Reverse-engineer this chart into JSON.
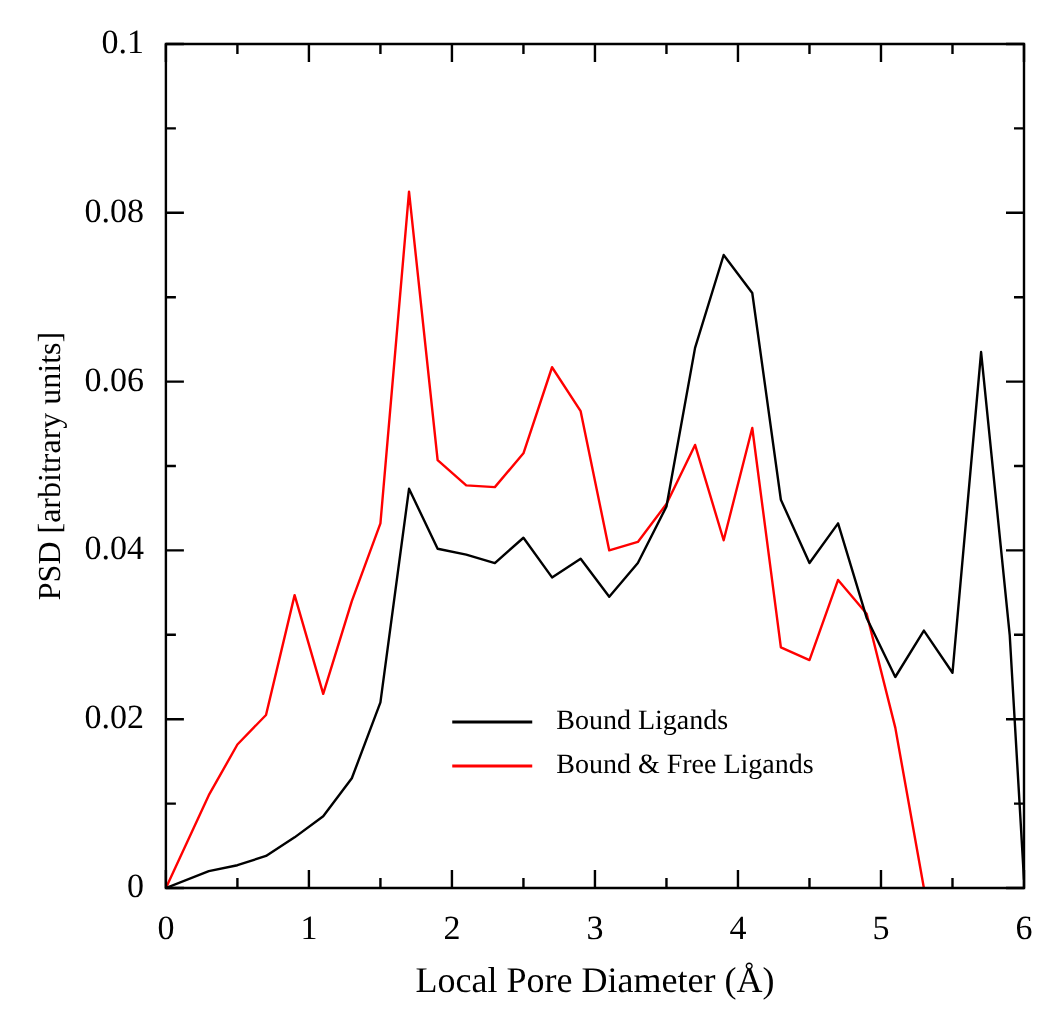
{
  "chart_data": {
    "type": "line",
    "xlabel": "Local Pore Diameter (Å)",
    "ylabel": "PSD [arbitrary units]",
    "x": [
      0,
      0.3,
      0.5,
      0.7,
      0.9,
      1.1,
      1.3,
      1.5,
      1.7,
      1.9,
      2.1,
      2.3,
      2.5,
      2.7,
      2.9,
      3.1,
      3.3,
      3.5,
      3.7,
      3.9,
      4.1,
      4.3,
      4.5,
      4.7,
      4.9,
      5.1,
      5.3,
      5.5,
      5.7,
      5.9,
      6
    ],
    "series": [
      {
        "name": "Bound Ligands",
        "color": "#000000",
        "values": [
          0,
          0.002,
          0.0027,
          0.0038,
          0.006,
          0.0085,
          0.013,
          0.022,
          0.0473,
          0.0402,
          0.0395,
          0.0385,
          0.0415,
          0.0368,
          0.039,
          0.0345,
          0.0385,
          0.0452,
          0.064,
          0.075,
          0.0705,
          0.046,
          0.0385,
          0.0432,
          0.032,
          0.025,
          0.0305,
          0.0255,
          0.0635,
          0.03,
          0.001
        ]
      },
      {
        "name": "Bound & Free Ligands",
        "color": "#ff0000",
        "values": [
          0,
          0.011,
          0.017,
          0.0205,
          0.0347,
          0.023,
          0.034,
          0.0432,
          0.0825,
          0.0507,
          0.0477,
          0.0475,
          0.0515,
          0.0617,
          0.0565,
          0.04,
          0.041,
          0.0455,
          0.0525,
          0.0412,
          0.0545,
          0.0285,
          0.027,
          0.0365,
          0.0325,
          0.019,
          0,
          null,
          null,
          null,
          null
        ]
      }
    ],
    "xlim": [
      0,
      6
    ],
    "ylim": [
      0,
      0.1
    ],
    "xticks": [
      0,
      {
        "value": 0.5,
        "label": null
      },
      1,
      {
        "value": 1.5,
        "label": null
      },
      2,
      {
        "value": 2.5,
        "label": null
      },
      3,
      {
        "value": 3.5,
        "label": null
      },
      4,
      {
        "value": 4.5,
        "label": null
      },
      5,
      {
        "value": 5.5,
        "label": null
      },
      6
    ],
    "yticks": [
      0,
      {
        "value": 0.01,
        "label": null
      },
      0.02,
      {
        "value": 0.03,
        "label": null
      },
      0.04,
      {
        "value": 0.05,
        "label": null
      },
      0.06,
      {
        "value": 0.07,
        "label": null
      },
      0.08,
      {
        "value": 0.09,
        "label": null
      },
      0.1
    ],
    "grid": false,
    "legend": "bottom",
    "marker": "none",
    "line_style": "solid"
  }
}
